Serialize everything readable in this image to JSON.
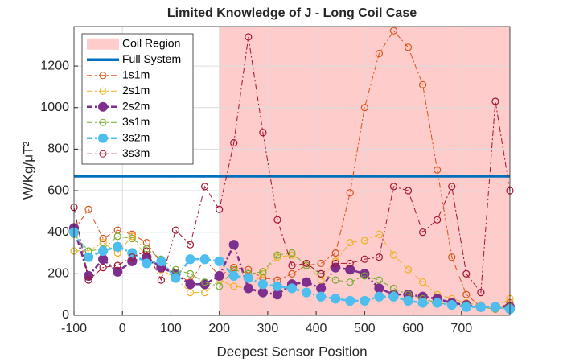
{
  "chart_data": {
    "type": "line",
    "title": "Limited Knowledge of J - Long Coil Case",
    "x_label": "Deepest Sensor Position",
    "y_label": "W/Kg/μT²",
    "xlim": [
      -100,
      800
    ],
    "ylim": [
      0,
      1390
    ],
    "xticks": [
      -100,
      0,
      100,
      200,
      300,
      400,
      500,
      600,
      700
    ],
    "yticks": [
      0,
      200,
      400,
      600,
      800,
      1000,
      1200
    ],
    "grid": true,
    "legend": "upper-left",
    "region": {
      "name": "Coil Region",
      "color": "#ffcccc",
      "x": [
        200,
        800
      ]
    },
    "x": [
      -100,
      -70,
      -40,
      -10,
      20,
      50,
      80,
      110,
      140,
      170,
      200,
      230,
      260,
      290,
      320,
      350,
      380,
      410,
      440,
      470,
      500,
      530,
      560,
      590,
      620,
      650,
      680,
      710,
      740,
      770,
      800
    ],
    "series": [
      {
        "name": "Full System",
        "color": "#0072bd",
        "style": "solid",
        "marker": "none",
        "width": 3.5,
        "values": [
          670,
          670,
          670,
          670,
          670,
          670,
          670,
          670,
          670,
          670,
          670,
          670,
          670,
          670,
          670,
          670,
          670,
          670,
          670,
          670,
          670,
          670,
          670,
          670,
          670,
          670,
          670,
          670,
          670,
          670,
          670
        ]
      },
      {
        "name": "1s1m",
        "color": "#d95319",
        "style": "dashdot",
        "marker": "open",
        "width": 1,
        "values": [
          410,
          510,
          370,
          410,
          390,
          350,
          250,
          200,
          160,
          270,
          190,
          230,
          220,
          180,
          170,
          200,
          240,
          250,
          300,
          590,
          1000,
          1260,
          1370,
          1290,
          1110,
          700,
          280,
          100,
          40,
          30,
          60
        ]
      },
      {
        "name": "2s1m",
        "color": "#edb120",
        "style": "dashdot",
        "marker": "open",
        "width": 1,
        "values": [
          310,
          310,
          350,
          300,
          380,
          280,
          220,
          180,
          110,
          110,
          170,
          140,
          130,
          200,
          280,
          290,
          250,
          170,
          260,
          350,
          360,
          390,
          290,
          220,
          160,
          100,
          80,
          60,
          50,
          40,
          80
        ]
      },
      {
        "name": "2s2m",
        "color": "#7e2f8e",
        "style": "dashdot",
        "marker": "filled",
        "width": 2.5,
        "values": [
          420,
          190,
          270,
          210,
          260,
          280,
          230,
          200,
          150,
          150,
          190,
          340,
          130,
          110,
          100,
          150,
          160,
          130,
          230,
          220,
          200,
          130,
          100,
          100,
          90,
          80,
          60,
          50,
          40,
          40,
          40
        ]
      },
      {
        "name": "3s1m",
        "color": "#77ac30",
        "style": "dashdot",
        "marker": "open",
        "width": 1,
        "values": [
          390,
          310,
          320,
          380,
          370,
          320,
          270,
          220,
          200,
          160,
          140,
          220,
          200,
          210,
          290,
          300,
          240,
          200,
          170,
          160,
          190,
          170,
          130,
          100,
          80,
          60,
          50,
          50,
          40,
          30,
          40
        ]
      },
      {
        "name": "3s2m",
        "color": "#4dbeee",
        "style": "dashdot",
        "marker": "filled",
        "width": 2.5,
        "values": [
          400,
          280,
          310,
          330,
          300,
          250,
          260,
          180,
          270,
          270,
          260,
          190,
          180,
          150,
          140,
          130,
          110,
          90,
          80,
          70,
          70,
          90,
          90,
          70,
          60,
          60,
          50,
          40,
          40,
          40,
          30
        ]
      },
      {
        "name": "3s3m",
        "color": "#a2142f",
        "style": "dashdot",
        "marker": "open",
        "width": 1,
        "values": [
          520,
          170,
          230,
          240,
          280,
          310,
          170,
          410,
          340,
          620,
          510,
          830,
          1340,
          880,
          460,
          240,
          250,
          200,
          250,
          250,
          270,
          280,
          620,
          600,
          400,
          460,
          620,
          200,
          110,
          1030,
          600
        ]
      }
    ]
  }
}
